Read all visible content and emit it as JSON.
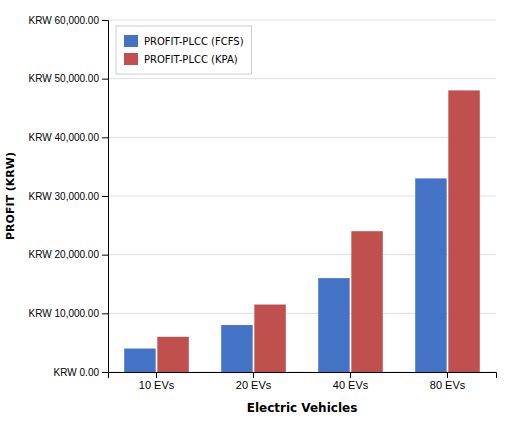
{
  "chart_data": {
    "type": "bar",
    "categories": [
      "10 EVs",
      "20 EVs",
      "40 EVs",
      "80 EVs"
    ],
    "series": [
      {
        "name": "PROFIT-PLCC (FCFS)",
        "color": "#4472C4",
        "values": [
          4000,
          8000,
          16000,
          33000
        ]
      },
      {
        "name": "PROFIT-PLCC (KPA)",
        "color": "#C0504D",
        "values": [
          6000,
          11500,
          24000,
          48000
        ]
      }
    ],
    "xlabel": "Electric Vehicles",
    "ylabel": "PROFIT (KRW)",
    "ylim": [
      0,
      60000
    ],
    "yticks": [
      {
        "value": 0,
        "label": "KRW 0.00"
      },
      {
        "value": 10000,
        "label": "KRW 10,000.00"
      },
      {
        "value": 20000,
        "label": "KRW 20,000.00"
      },
      {
        "value": 30000,
        "label": "KRW 30,000.00"
      },
      {
        "value": 40000,
        "label": "KRW 40,000.00"
      },
      {
        "value": 50000,
        "label": "KRW 50,000.00"
      },
      {
        "value": 60000,
        "label": "KRW 60,000.00"
      }
    ],
    "grid": true,
    "legend": "upper left"
  }
}
